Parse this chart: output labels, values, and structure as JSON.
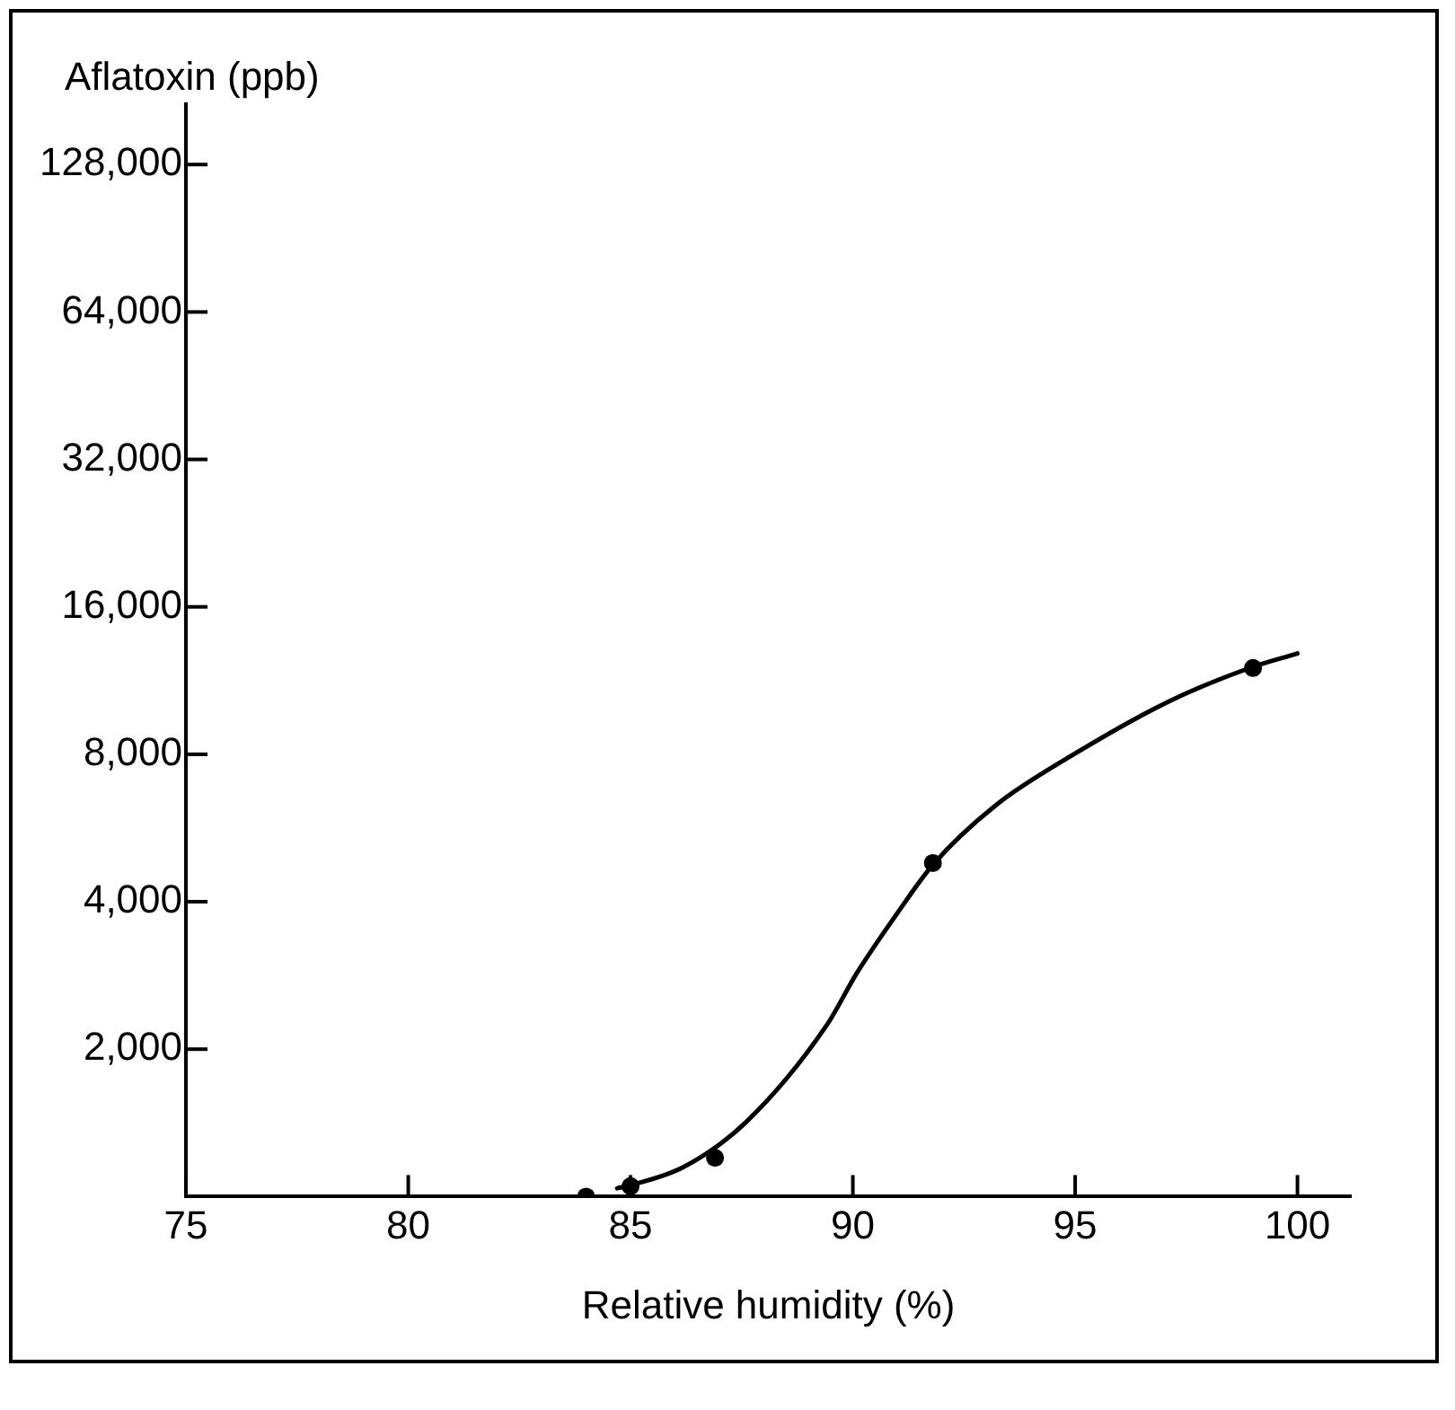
{
  "chart_data": {
    "type": "line",
    "xlabel": "Relative humidity (%)",
    "ylabel": "Aflatoxin (ppb)",
    "log": "y",
    "xlim": [
      75,
      101.2
    ],
    "xticks": [
      75,
      80,
      85,
      90,
      95,
      100
    ],
    "ylim": [
      1000,
      170000
    ],
    "yticks": [
      {
        "value": 2000,
        "label": "2,000"
      },
      {
        "value": 4000,
        "label": "4,000"
      },
      {
        "value": 8000,
        "label": "8,000"
      },
      {
        "value": 16000,
        "label": "16,000"
      },
      {
        "value": 32000,
        "label": "32,000"
      },
      {
        "value": 64000,
        "label": "64,000"
      },
      {
        "value": 128000,
        "label": "128,000"
      }
    ],
    "grid": false,
    "legend": false,
    "series": [
      {
        "type": "scatter",
        "color": "#000000",
        "marker": "circle",
        "x": [
          84,
          85,
          86.9,
          91.8,
          99
        ],
        "values": [
          1000,
          1050,
          1200,
          4800,
          12000
        ]
      },
      {
        "color": "#000000",
        "marker": "none",
        "x": [
          84.7,
          85,
          86.2,
          87.6,
          89.4,
          90.1,
          91,
          91.8,
          93.2,
          94.9,
          97.1,
          98.9,
          100
        ],
        "values": [
          1040,
          1055,
          1150,
          1420,
          2230,
          2870,
          3790,
          4760,
          6280,
          7930,
          10250,
          11980,
          12850
        ]
      }
    ]
  }
}
